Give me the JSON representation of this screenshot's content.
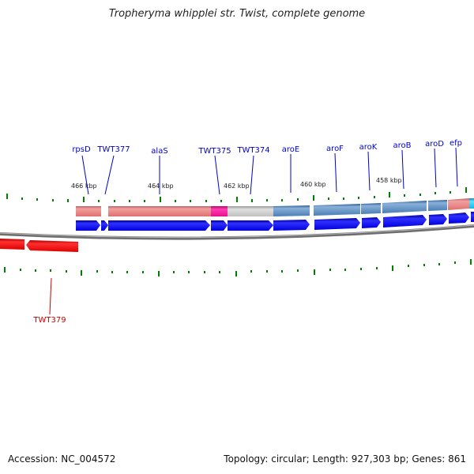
{
  "title": "Tropheryma whipplei str. Twist, complete genome",
  "footer": {
    "accession": "Accession: NC_004572",
    "summary": "Topology: circular; Length: 927,303 bp; Genes: 861"
  },
  "kbp_labels": [
    "466 kbp",
    "464 kbp",
    "462 kbp",
    "460 kbp",
    "458 kbp"
  ],
  "gene_labels": [
    {
      "name": "rpsD",
      "color": "#0000cc"
    },
    {
      "name": "TWT377",
      "color": "#0000cc"
    },
    {
      "name": "alaS",
      "color": "#0000cc"
    },
    {
      "name": "TWT375",
      "color": "#0000cc"
    },
    {
      "name": "TWT374",
      "color": "#0000cc"
    },
    {
      "name": "aroE",
      "color": "#0000cc"
    },
    {
      "name": "aroF",
      "color": "#0000cc"
    },
    {
      "name": "aroK",
      "color": "#0000cc"
    },
    {
      "name": "aroB",
      "color": "#0000cc"
    },
    {
      "name": "aroD",
      "color": "#0000cc"
    },
    {
      "name": "efp",
      "color": "#0000cc"
    },
    {
      "name": "TWT379",
      "color": "#cc0000"
    }
  ],
  "colors": {
    "forward_strand": "#0000ee",
    "reverse_strand": "#ee0000",
    "cog_salmon": "#e88080",
    "cog_magenta": "#e8108c",
    "cog_grey": "#c0c0c0",
    "cog_steelblue": "#4a7fb5",
    "cog_cyan": "#10b8e8",
    "tick_green": "#008000"
  }
}
